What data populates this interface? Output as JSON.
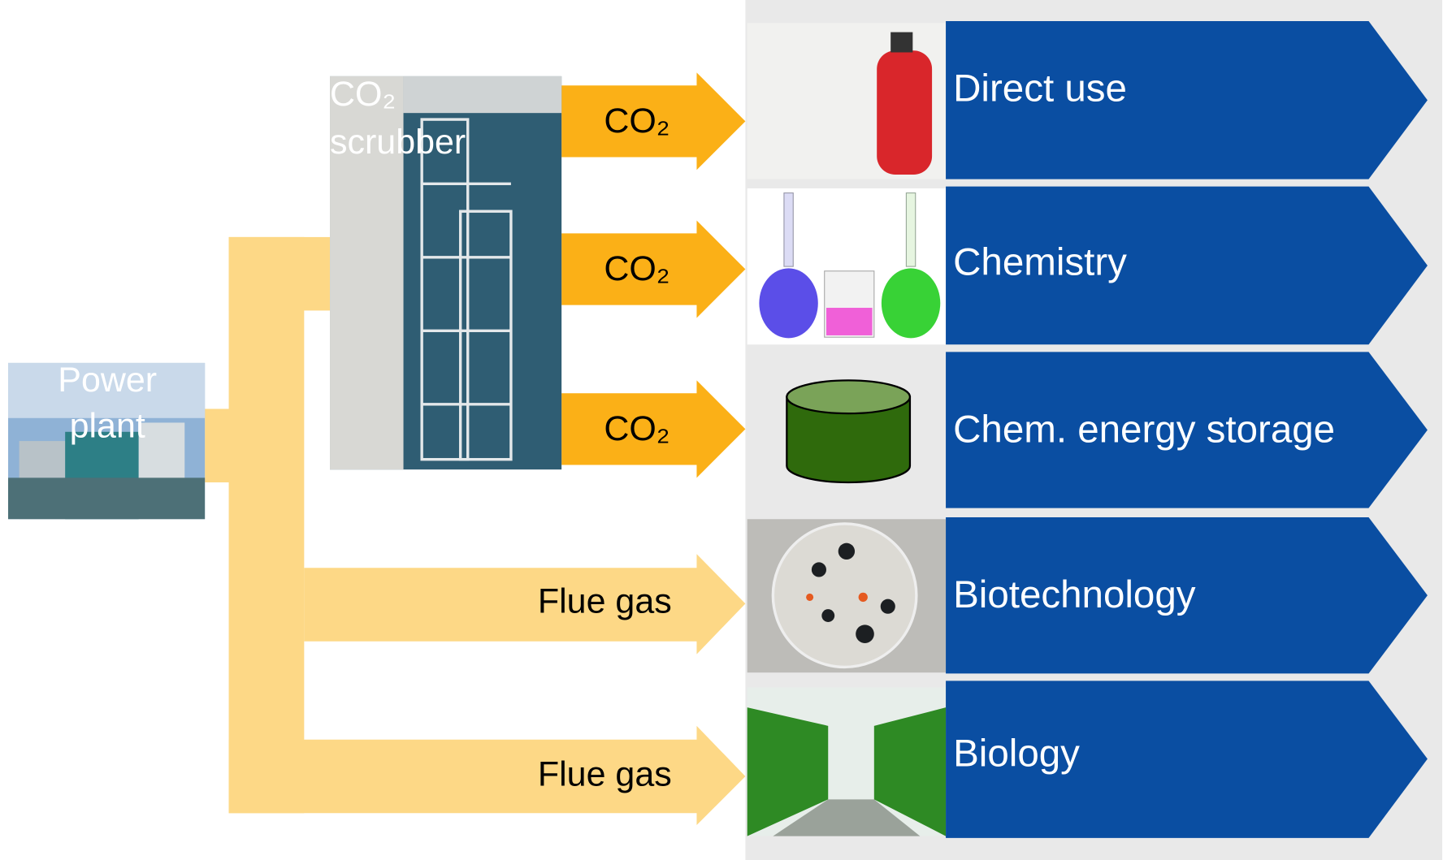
{
  "source": {
    "label_lines": [
      "Power",
      "plant"
    ]
  },
  "scrubber": {
    "label_lines": [
      "CO₂",
      "scrubber"
    ]
  },
  "arrows": [
    {
      "label": "CO₂"
    },
    {
      "label": "CO₂"
    },
    {
      "label": "CO₂"
    },
    {
      "label": "Flue gas"
    },
    {
      "label": "Flue gas"
    }
  ],
  "targets": [
    {
      "label": "Direct use"
    },
    {
      "label": "Chemistry"
    },
    {
      "label": "Chem. energy storage"
    },
    {
      "label": "Biotechnology"
    },
    {
      "label": "Biology"
    }
  ]
}
